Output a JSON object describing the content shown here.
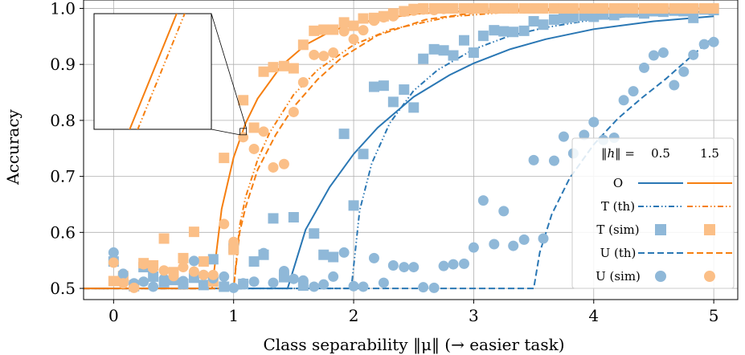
{
  "chart_data": {
    "type": "line",
    "xlabel": "Class separability ‖μ‖ (→ easier task)",
    "ylabel": "Accuracy",
    "xlim": [
      -0.25,
      5.2
    ],
    "ylim": [
      0.48,
      1.015
    ],
    "xticks": [
      0,
      1,
      2,
      3,
      4,
      5
    ],
    "yticks": [
      0.5,
      0.6,
      0.7,
      0.8,
      0.9,
      1.0
    ],
    "xtick_labels": [
      "0",
      "1",
      "2",
      "3",
      "4",
      "5"
    ],
    "ytick_labels": [
      "0.5",
      "0.6",
      "0.7",
      "0.8",
      "0.9",
      "1.0"
    ],
    "grid": true,
    "colors": {
      "h05": "#2a77b4",
      "h15": "#f67f10",
      "h05_marker": "#8fb8d8",
      "h15_marker": "#fbbf87"
    },
    "legend": {
      "placement": "right",
      "header": "‖h‖ =",
      "columns": [
        "0.5",
        "1.5"
      ],
      "rows": [
        "O",
        "T (th)",
        "T (sim)",
        "U (th)",
        "U (sim)"
      ]
    },
    "series": [
      {
        "name": "O",
        "h": "0.5",
        "style": "solid",
        "threshold": 1.45,
        "x": [
          1.45,
          1.6,
          1.8,
          2.0,
          2.2,
          2.5,
          2.8,
          3.0,
          3.3,
          3.6,
          4.0,
          4.5,
          5.0
        ],
        "y": [
          0.5,
          0.605,
          0.681,
          0.74,
          0.787,
          0.842,
          0.881,
          0.902,
          0.927,
          0.945,
          0.963,
          0.977,
          0.986
        ]
      },
      {
        "name": "O",
        "h": "1.5",
        "style": "solid",
        "threshold": 0.82,
        "x": [
          0.82,
          0.9,
          1.0,
          1.1,
          1.2,
          1.4,
          1.6,
          1.8,
          2.0,
          2.5,
          3.0,
          4.0,
          5.0
        ],
        "y": [
          0.5,
          0.642,
          0.734,
          0.795,
          0.839,
          0.898,
          0.935,
          0.958,
          0.973,
          0.99,
          0.996,
          1.0,
          1.0
        ]
      },
      {
        "name": "T (th)",
        "h": "0.5",
        "style": "dashdot",
        "threshold": 1.98,
        "x": [
          1.98,
          2.05,
          2.15,
          2.3,
          2.5,
          2.7,
          3.0,
          3.3,
          3.6,
          4.0,
          4.5,
          5.0
        ],
        "y": [
          0.5,
          0.639,
          0.723,
          0.795,
          0.853,
          0.89,
          0.927,
          0.951,
          0.966,
          0.98,
          0.99,
          0.995
        ]
      },
      {
        "name": "T (th)",
        "h": "1.5",
        "style": "dashdot",
        "threshold": 1.0,
        "x": [
          1.0,
          1.05,
          1.1,
          1.2,
          1.3,
          1.5,
          1.7,
          2.0,
          2.3,
          2.8,
          3.5,
          5.0
        ],
        "y": [
          0.5,
          0.612,
          0.663,
          0.73,
          0.778,
          0.846,
          0.89,
          0.935,
          0.962,
          0.985,
          0.997,
          1.0
        ]
      },
      {
        "name": "U (th)",
        "h": "0.5",
        "style": "dashed",
        "threshold": 3.5,
        "x": [
          3.5,
          3.55,
          3.65,
          3.8,
          4.0,
          4.2,
          4.4,
          4.6,
          4.8,
          5.0
        ],
        "y": [
          0.5,
          0.564,
          0.632,
          0.697,
          0.757,
          0.803,
          0.84,
          0.874,
          0.912,
          0.949
        ]
      },
      {
        "name": "U (th)",
        "h": "1.5",
        "style": "dashed",
        "threshold": 1.0,
        "x": [
          1.0,
          1.05,
          1.1,
          1.2,
          1.35,
          1.5,
          1.7,
          1.9,
          2.2,
          2.6,
          3.0,
          4.0,
          5.0
        ],
        "y": [
          0.5,
          0.6,
          0.645,
          0.712,
          0.774,
          0.824,
          0.873,
          0.912,
          0.952,
          0.98,
          0.992,
          0.999,
          1.0
        ]
      },
      {
        "name": "T (sim)",
        "h": "0.5",
        "marker": "square",
        "x": [
          0.0,
          0.08,
          0.17,
          0.25,
          0.33,
          0.42,
          0.5,
          0.58,
          0.67,
          0.75,
          0.83,
          0.92,
          1.0,
          1.08,
          1.17,
          1.25,
          1.33,
          1.42,
          1.5,
          1.58,
          1.67,
          1.75,
          1.83,
          1.92,
          2.0,
          2.08,
          2.17,
          2.25,
          2.33,
          2.42,
          2.5,
          2.58,
          2.67,
          2.75,
          2.83,
          2.92,
          3.0,
          3.08,
          3.17,
          3.25,
          3.33,
          3.42,
          3.5,
          3.58,
          3.67,
          3.75,
          3.83,
          3.92,
          4.0,
          4.08,
          4.17,
          4.25,
          4.33,
          4.42,
          4.5,
          4.58,
          4.67,
          4.75,
          4.83,
          4.92,
          5.0
        ],
        "y": [
          0.548,
          0.515,
          0.504,
          0.538,
          0.521,
          0.511,
          0.515,
          0.508,
          0.519,
          0.506,
          0.552,
          0.503,
          0.572,
          0.508,
          0.548,
          0.56,
          0.625,
          0.52,
          0.627,
          0.505,
          0.598,
          0.56,
          0.556,
          0.776,
          0.648,
          0.74,
          0.86,
          0.862,
          0.833,
          0.855,
          0.823,
          0.91,
          0.927,
          0.925,
          0.916,
          0.943,
          0.921,
          0.951,
          0.961,
          0.959,
          0.958,
          0.96,
          0.977,
          0.971,
          0.98,
          0.982,
          0.984,
          0.987,
          0.985,
          0.989,
          0.988,
          0.993,
          0.993,
          0.991,
          0.995,
          0.994,
          0.996,
          0.995,
          0.983,
          0.998,
          0.997
        ]
      },
      {
        "name": "T (sim)",
        "h": "1.5",
        "marker": "square",
        "x": [
          0.0,
          0.08,
          0.17,
          0.25,
          0.33,
          0.42,
          0.5,
          0.58,
          0.67,
          0.75,
          0.83,
          0.92,
          1.0,
          1.08,
          1.17,
          1.25,
          1.33,
          1.42,
          1.5,
          1.58,
          1.67,
          1.75,
          1.83,
          1.92,
          2.0,
          2.08,
          2.17,
          2.25,
          2.33,
          2.42,
          2.5,
          2.58,
          2.67,
          2.75,
          2.83,
          2.92,
          3.0,
          3.08,
          3.17,
          3.25,
          3.33,
          3.42,
          3.5,
          3.58,
          3.67,
          3.75,
          3.83,
          3.92,
          4.0,
          4.08,
          4.17,
          4.25,
          4.33,
          4.42,
          4.5,
          4.58,
          4.67,
          4.75,
          4.83,
          4.92,
          5.0
        ],
        "y": [
          0.513,
          0.522,
          0.506,
          0.545,
          0.541,
          0.589,
          0.529,
          0.554,
          0.601,
          0.548,
          0.512,
          0.733,
          0.569,
          0.836,
          0.787,
          0.887,
          0.895,
          0.897,
          0.893,
          0.935,
          0.96,
          0.962,
          0.962,
          0.975,
          0.969,
          0.982,
          0.983,
          0.986,
          0.991,
          0.995,
          0.999,
          1.0,
          1.0,
          1.0,
          1.0,
          1.0,
          1.0,
          1.0,
          1.0,
          1.0,
          1.0,
          1.0,
          1.0,
          1.0,
          1.0,
          1.0,
          1.0,
          1.0,
          1.0,
          1.0,
          1.0,
          1.0,
          1.0,
          1.0,
          1.0,
          1.0,
          1.0,
          1.0,
          1.0,
          1.0,
          1.0
        ]
      },
      {
        "name": "U (sim)",
        "h": "0.5",
        "marker": "circle",
        "x": [
          0.0,
          0.08,
          0.17,
          0.25,
          0.33,
          0.42,
          0.5,
          0.58,
          0.67,
          0.75,
          0.83,
          0.92,
          1.0,
          1.08,
          1.17,
          1.25,
          1.33,
          1.42,
          1.5,
          1.58,
          1.67,
          1.75,
          1.83,
          1.92,
          2.0,
          2.08,
          2.17,
          2.25,
          2.33,
          2.42,
          2.5,
          2.58,
          2.67,
          2.75,
          2.83,
          2.92,
          3.0,
          3.08,
          3.17,
          3.25,
          3.33,
          3.42,
          3.5,
          3.58,
          3.67,
          3.75,
          3.83,
          3.92,
          4.0,
          4.08,
          4.17,
          4.25,
          4.33,
          4.42,
          4.5,
          4.58,
          4.67,
          4.75,
          4.83,
          4.92,
          5.0
        ],
        "y": [
          0.564,
          0.526,
          0.509,
          0.512,
          0.503,
          0.517,
          0.519,
          0.513,
          0.549,
          0.524,
          0.518,
          0.521,
          0.501,
          0.509,
          0.512,
          0.563,
          0.51,
          0.531,
          0.517,
          0.514,
          0.503,
          0.507,
          0.521,
          0.564,
          0.504,
          0.503,
          0.554,
          0.51,
          0.541,
          0.538,
          0.538,
          0.502,
          0.501,
          0.54,
          0.543,
          0.544,
          0.573,
          0.657,
          0.579,
          0.638,
          0.576,
          0.587,
          0.729,
          0.589,
          0.728,
          0.771,
          0.741,
          0.774,
          0.797,
          0.765,
          0.769,
          0.836,
          0.852,
          0.894,
          0.916,
          0.921,
          0.863,
          0.887,
          0.917,
          0.936,
          0.94
        ]
      },
      {
        "name": "U (sim)",
        "h": "1.5",
        "marker": "circle",
        "x": [
          0.0,
          0.08,
          0.17,
          0.25,
          0.33,
          0.42,
          0.5,
          0.58,
          0.67,
          0.75,
          0.83,
          0.92,
          1.0,
          1.08,
          1.17,
          1.25,
          1.33,
          1.42,
          1.5,
          1.58,
          1.67,
          1.75,
          1.83,
          1.92,
          2.0,
          2.08,
          2.17,
          2.25,
          2.33,
          2.42,
          2.5,
          2.58,
          2.67,
          2.75,
          2.83,
          2.92,
          3.0,
          3.08,
          3.17,
          3.25,
          3.33,
          3.42,
          3.5,
          3.58,
          3.67,
          3.75,
          3.83,
          3.92,
          4.0,
          4.08,
          4.17,
          4.25,
          4.33,
          4.42,
          4.5,
          4.58,
          4.67,
          4.75,
          4.83,
          4.92,
          5.0
        ],
        "y": [
          0.546,
          0.509,
          0.501,
          0.543,
          0.536,
          0.532,
          0.522,
          0.538,
          0.53,
          0.524,
          0.524,
          0.615,
          0.583,
          0.77,
          0.749,
          0.78,
          0.716,
          0.722,
          0.815,
          0.868,
          0.917,
          0.915,
          0.921,
          0.959,
          0.945,
          0.961,
          0.978,
          0.984,
          0.986,
          0.994,
          0.996,
          0.998,
          0.997,
          0.999,
          1.0,
          1.0,
          1.0,
          1.0,
          1.0,
          1.0,
          1.0,
          1.0,
          1.0,
          1.0,
          1.0,
          1.0,
          1.0,
          1.0,
          1.0,
          1.0,
          1.0,
          1.0,
          1.0,
          1.0,
          1.0,
          1.0,
          1.0,
          1.0,
          1.0,
          1.0,
          1.0
        ]
      }
    ]
  }
}
